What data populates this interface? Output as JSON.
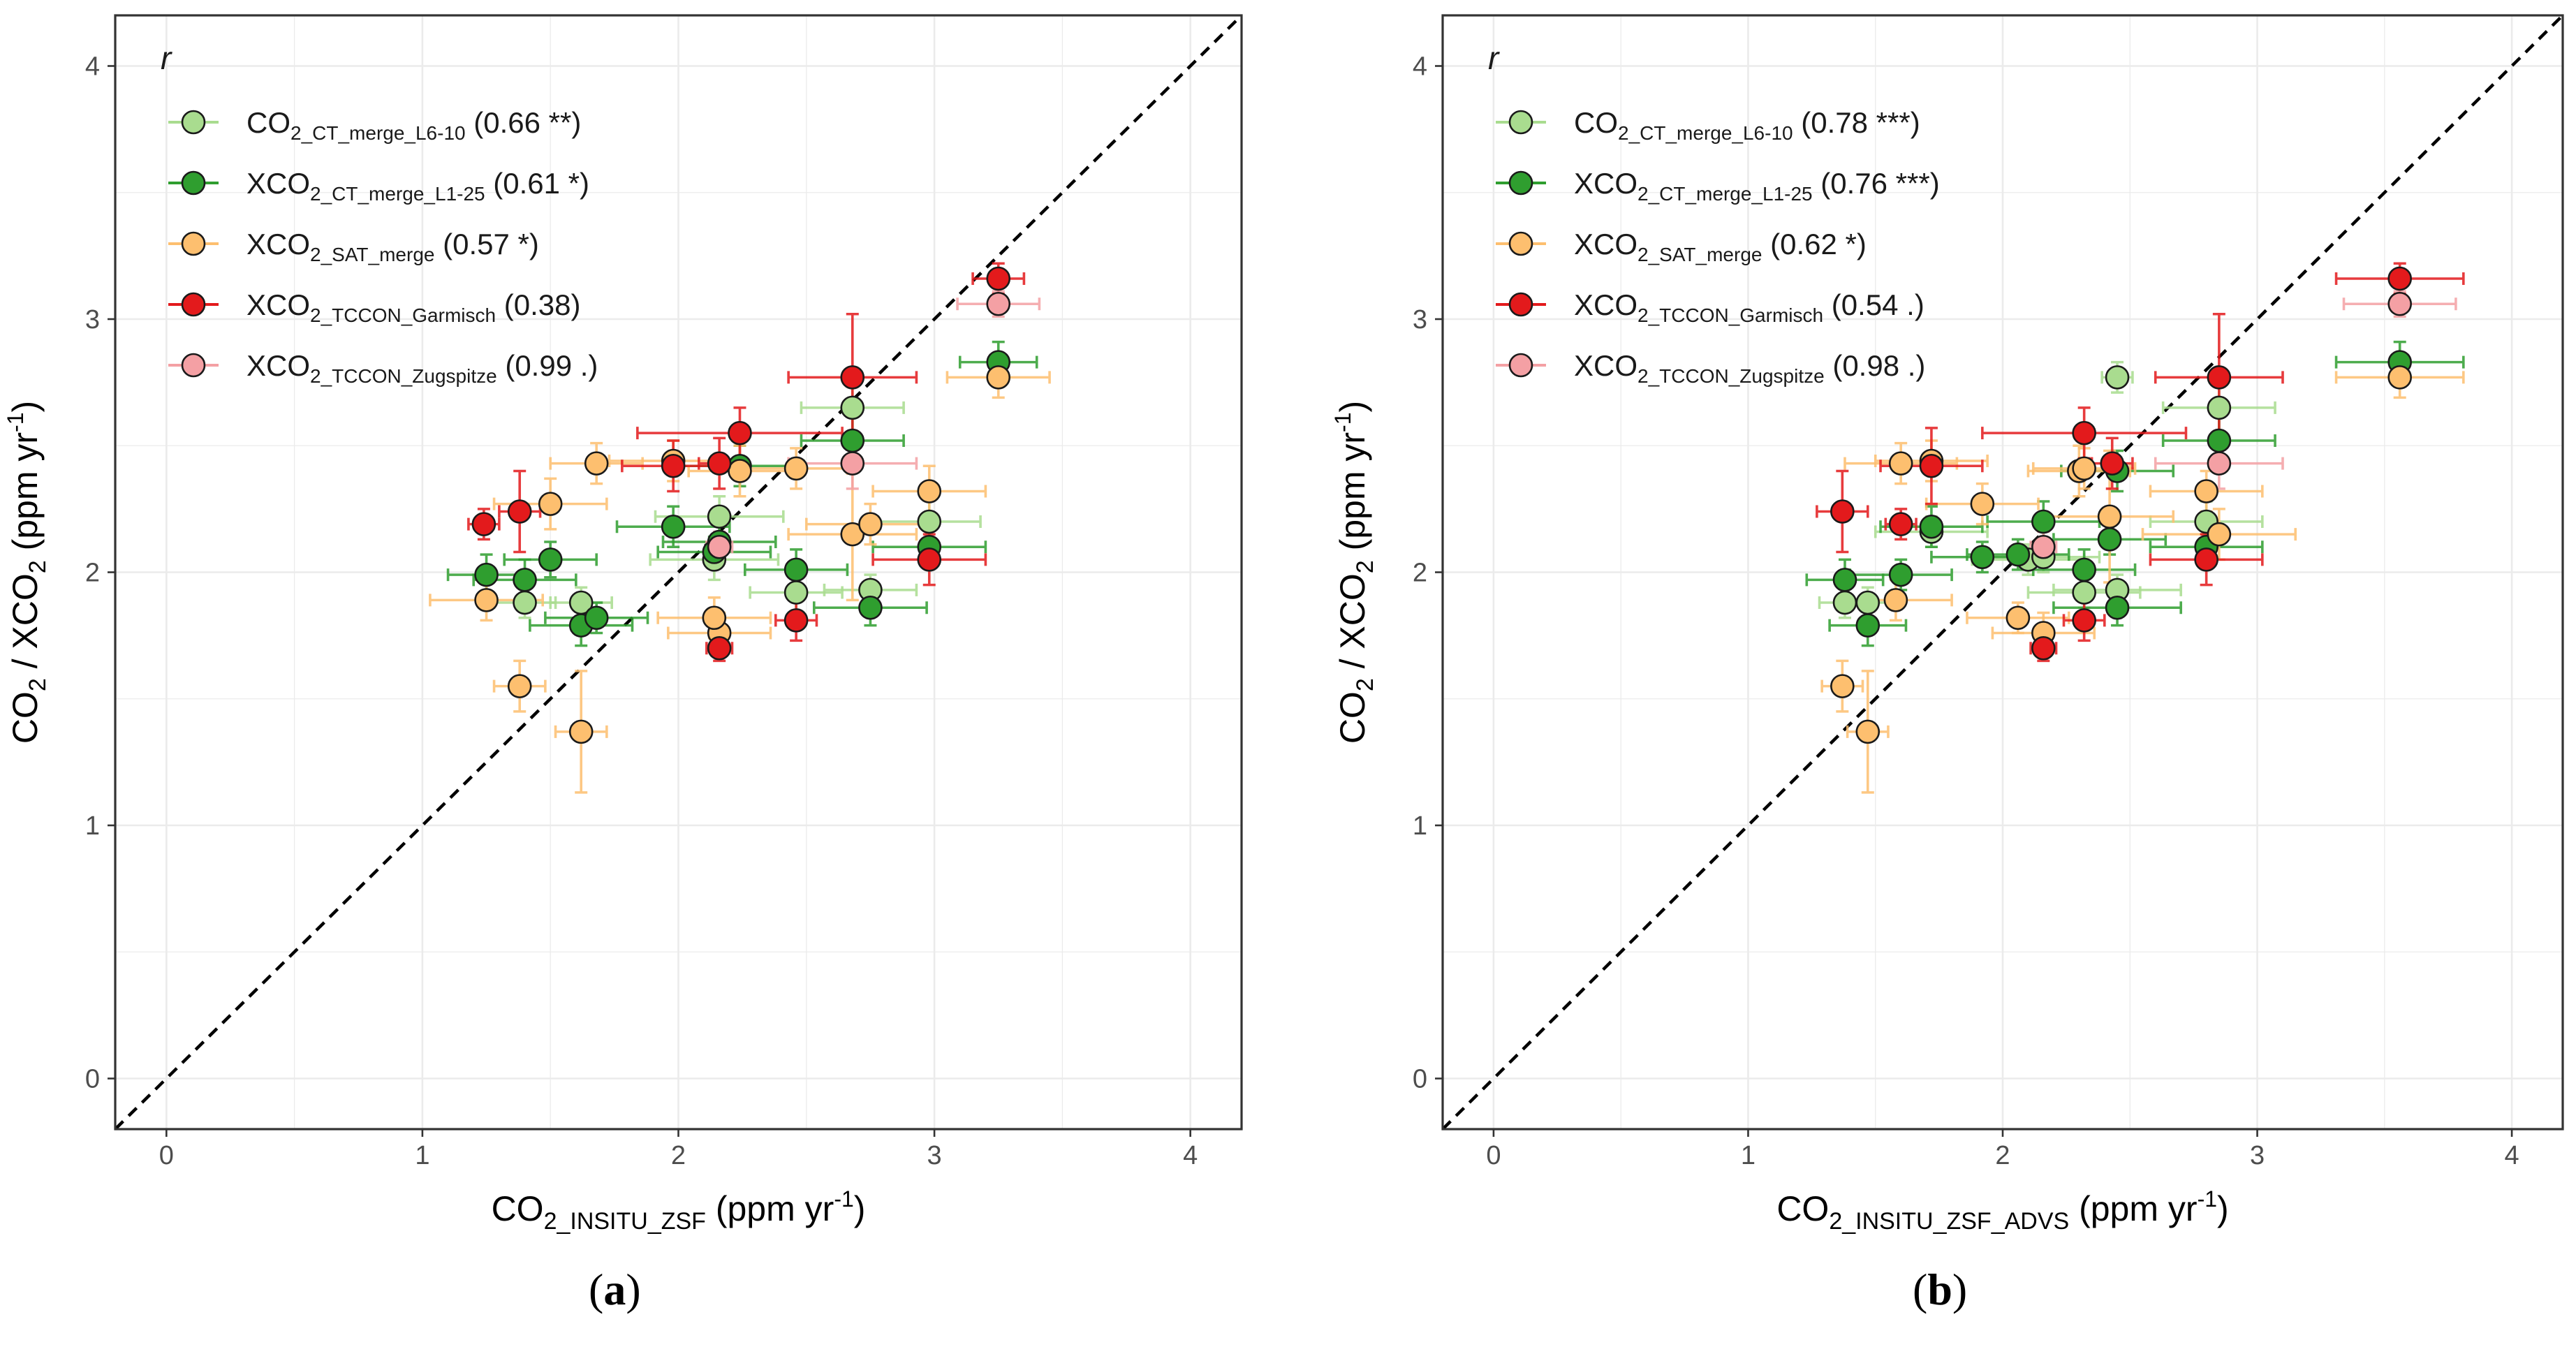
{
  "chart_data": [
    {
      "type": "scatter",
      "panel": "(a)",
      "panel_letter": "a",
      "xlabel": {
        "main": "CO",
        "sub": "2_INSITU_ZSF",
        "tail": " (ppm yr",
        "sup": "-1",
        "end": ")"
      },
      "ylabel": "CO2 / XCO2 (ppm yr-1)",
      "xlim": [
        -0.2,
        4.2
      ],
      "ylim": [
        -0.2,
        4.2
      ],
      "x_ticks": [
        "0",
        "1",
        "2",
        "3",
        "4"
      ],
      "y_ticks": [
        "0",
        "1",
        "2",
        "3",
        "4"
      ],
      "grid": true,
      "reference_line": "y = x (dashed)",
      "legend_title": "r",
      "legend_position": "top-left",
      "series": [
        {
          "name_main": "CO",
          "name_sub": "2_CT_merge_L6-10",
          "r_label": "(0.66 **)",
          "color": "#a9dc8f",
          "x": [
            1.4,
            1.62,
            2.14,
            2.16,
            2.46,
            2.68,
            2.75,
            2.98
          ],
          "y": [
            1.88,
            1.88,
            2.05,
            2.22,
            1.92,
            2.65,
            1.93,
            2.2
          ],
          "xerr": [
            0.12,
            0.12,
            0.25,
            0.25,
            0.18,
            0.2,
            0.18,
            0.2
          ],
          "yerr": [
            0.06,
            0.06,
            0.08,
            0.08,
            0.08,
            0.1,
            0.06,
            0.1
          ]
        },
        {
          "name_main": "XCO",
          "name_sub": "2_CT_merge_L1-25",
          "r_label": "(0.61 *)",
          "color": "#2f9e2f",
          "x": [
            1.25,
            1.4,
            1.5,
            1.62,
            1.68,
            1.98,
            2.14,
            2.16,
            2.24,
            2.46,
            2.68,
            2.75,
            2.98,
            3.25
          ],
          "y": [
            1.99,
            1.97,
            2.05,
            1.79,
            1.82,
            2.18,
            2.08,
            2.12,
            2.42,
            2.01,
            2.52,
            1.86,
            2.1,
            2.83
          ],
          "xerr": [
            0.15,
            0.2,
            0.18,
            0.2,
            0.2,
            0.22,
            0.22,
            0.22,
            0.25,
            0.2,
            0.2,
            0.22,
            0.22,
            0.15
          ],
          "yerr": [
            0.08,
            0.08,
            0.07,
            0.08,
            0.06,
            0.08,
            0.06,
            0.08,
            0.08,
            0.08,
            0.1,
            0.07,
            0.08,
            0.08
          ]
        },
        {
          "name_main": "XCO",
          "name_sub": "2_SAT_merge",
          "r_label": "(0.57 *)",
          "color": "#fdbf6f",
          "x": [
            1.25,
            1.38,
            1.5,
            1.62,
            1.68,
            1.98,
            2.16,
            2.24,
            2.46,
            2.68,
            2.75,
            2.98,
            3.25,
            2.14
          ],
          "y": [
            1.89,
            1.55,
            2.27,
            1.37,
            2.43,
            2.44,
            1.76,
            2.4,
            2.41,
            2.15,
            2.19,
            2.32,
            2.77,
            1.82
          ],
          "xerr": [
            0.22,
            0.1,
            0.22,
            0.1,
            0.18,
            0.25,
            0.2,
            0.2,
            0.2,
            0.25,
            0.25,
            0.22,
            0.2,
            0.22
          ],
          "yerr": [
            0.08,
            0.1,
            0.1,
            0.24,
            0.08,
            0.08,
            0.08,
            0.1,
            0.08,
            0.26,
            0.08,
            0.1,
            0.08,
            0.08
          ]
        },
        {
          "name_main": "XCO",
          "name_sub": "2_TCCON_Garmisch",
          "r_label": "(0.38)",
          "color": "#e31a1c",
          "x": [
            1.24,
            1.38,
            1.98,
            2.16,
            2.16,
            2.24,
            2.46,
            2.68,
            2.98,
            3.25
          ],
          "y": [
            2.19,
            2.24,
            2.42,
            2.43,
            1.7,
            2.55,
            1.81,
            2.77,
            2.05,
            3.16
          ],
          "xerr": [
            0.06,
            0.08,
            0.2,
            0.08,
            0.05,
            0.4,
            0.08,
            0.25,
            0.22,
            0.1
          ],
          "yerr": [
            0.06,
            0.16,
            0.1,
            0.1,
            0.05,
            0.1,
            0.08,
            0.25,
            0.1,
            0.06
          ]
        },
        {
          "name_main": "XCO",
          "name_sub": "2_TCCON_Zugspitze",
          "r_label": "(0.99 .)",
          "color": "#f4a0a4",
          "x": [
            2.16,
            2.68,
            3.25
          ],
          "y": [
            2.1,
            2.43,
            3.06
          ],
          "xerr": [
            0.05,
            0.25,
            0.16
          ],
          "yerr": [
            0.06,
            0.1,
            0.05
          ]
        }
      ]
    },
    {
      "type": "scatter",
      "panel": "(b)",
      "panel_letter": "b",
      "xlabel": {
        "main": "CO",
        "sub": "2_INSITU_ZSF_ADVS",
        "tail": " (ppm yr",
        "sup": "-1",
        "end": ")"
      },
      "ylabel": "CO2 / XCO2 (ppm yr-1)",
      "xlim": [
        -0.2,
        4.2
      ],
      "ylim": [
        -0.2,
        4.2
      ],
      "x_ticks": [
        "0",
        "1",
        "2",
        "3",
        "4"
      ],
      "y_ticks": [
        "0",
        "1",
        "2",
        "3",
        "4"
      ],
      "grid": true,
      "reference_line": "y = x (dashed)",
      "legend_title": "r",
      "legend_position": "top-left",
      "series": [
        {
          "name_main": "CO",
          "name_sub": "2_CT_merge_L6-10",
          "r_label": "(0.78 ***)",
          "color": "#a9dc8f",
          "x": [
            1.38,
            1.47,
            1.72,
            2.1,
            2.16,
            2.32,
            2.45,
            2.45,
            2.8,
            2.85
          ],
          "y": [
            1.88,
            1.88,
            2.16,
            2.05,
            2.06,
            1.92,
            1.93,
            2.77,
            2.2,
            2.65
          ],
          "xerr": [
            0.1,
            0.12,
            0.22,
            0.22,
            0.22,
            0.22,
            0.25,
            0.06,
            0.22,
            0.22
          ],
          "yerr": [
            0.06,
            0.06,
            0.06,
            0.06,
            0.06,
            0.06,
            0.06,
            0.06,
            0.08,
            0.1
          ]
        },
        {
          "name_main": "XCO",
          "name_sub": "2_CT_merge_L1-25",
          "r_label": "(0.76 ***)",
          "color": "#2f9e2f",
          "x": [
            1.38,
            1.47,
            1.6,
            1.72,
            1.92,
            2.06,
            2.16,
            2.32,
            2.42,
            2.45,
            2.45,
            2.8,
            2.85,
            3.56
          ],
          "y": [
            1.97,
            1.79,
            1.99,
            2.18,
            2.06,
            2.07,
            2.2,
            2.01,
            2.13,
            2.4,
            1.86,
            2.1,
            2.52,
            2.83
          ],
          "xerr": [
            0.15,
            0.15,
            0.2,
            0.2,
            0.2,
            0.2,
            0.22,
            0.2,
            0.22,
            0.22,
            0.25,
            0.22,
            0.22,
            0.25
          ],
          "yerr": [
            0.08,
            0.08,
            0.06,
            0.08,
            0.06,
            0.06,
            0.08,
            0.08,
            0.06,
            0.08,
            0.07,
            0.08,
            0.1,
            0.08
          ]
        },
        {
          "name_main": "XCO",
          "name_sub": "2_SAT_merge",
          "r_label": "(0.62 *)",
          "color": "#fdbf6f",
          "x": [
            1.37,
            1.47,
            1.58,
            1.6,
            1.72,
            1.92,
            2.06,
            2.16,
            2.3,
            2.32,
            2.42,
            2.8,
            2.85,
            3.56
          ],
          "y": [
            1.55,
            1.37,
            1.89,
            2.43,
            2.44,
            2.27,
            1.82,
            1.76,
            2.4,
            2.41,
            2.22,
            2.32,
            2.15,
            2.77
          ],
          "xerr": [
            0.08,
            0.08,
            0.22,
            0.22,
            0.22,
            0.22,
            0.2,
            0.2,
            0.2,
            0.2,
            0.25,
            0.22,
            0.3,
            0.25
          ],
          "yerr": [
            0.1,
            0.24,
            0.08,
            0.08,
            0.08,
            0.08,
            0.06,
            0.08,
            0.1,
            0.08,
            0.26,
            0.08,
            0.1,
            0.08
          ]
        },
        {
          "name_main": "XCO",
          "name_sub": "2_TCCON_Garmisch",
          "r_label": "(0.54 .)",
          "color": "#e31a1c",
          "x": [
            1.37,
            1.6,
            1.72,
            2.16,
            2.32,
            2.32,
            2.43,
            2.8,
            2.85,
            3.56
          ],
          "y": [
            2.24,
            2.19,
            2.42,
            1.7,
            1.81,
            2.55,
            2.43,
            2.05,
            2.77,
            3.16
          ],
          "xerr": [
            0.1,
            0.06,
            0.2,
            0.05,
            0.08,
            0.4,
            0.08,
            0.22,
            0.25,
            0.25
          ],
          "yerr": [
            0.16,
            0.06,
            0.15,
            0.05,
            0.08,
            0.1,
            0.1,
            0.1,
            0.25,
            0.06
          ]
        },
        {
          "name_main": "XCO",
          "name_sub": "2_TCCON_Zugspitze",
          "r_label": "(0.98 .)",
          "color": "#f4a0a4",
          "x": [
            2.16,
            2.85,
            3.56
          ],
          "y": [
            2.1,
            2.43,
            3.06
          ],
          "xerr": [
            0.05,
            0.25,
            0.22
          ],
          "yerr": [
            0.06,
            0.1,
            0.05
          ]
        }
      ]
    }
  ]
}
